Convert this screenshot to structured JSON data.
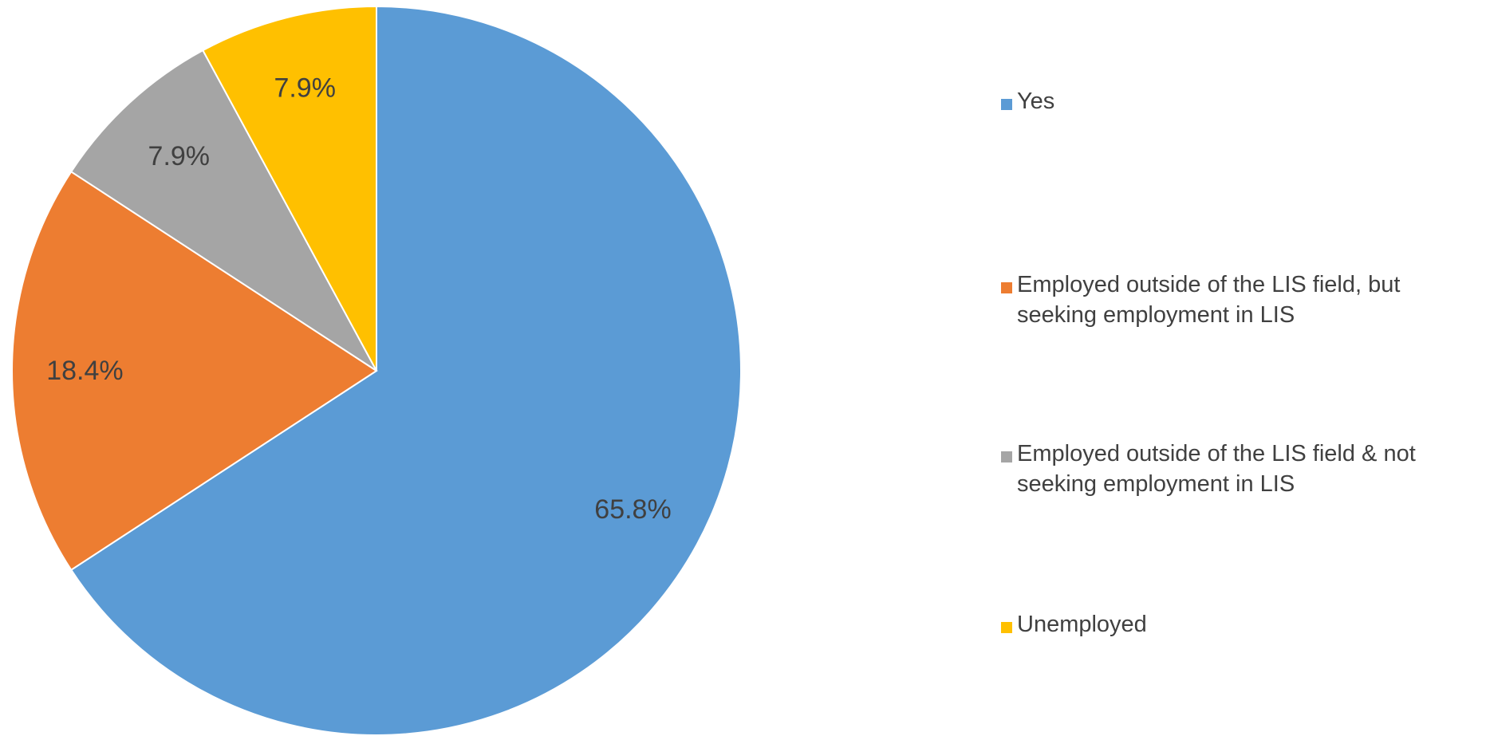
{
  "chart_data": {
    "type": "pie",
    "title": "",
    "start_angle_deg": 0,
    "direction": "clockwise",
    "slices": [
      {
        "name": "Yes",
        "value": 65.8,
        "label": "65.8%",
        "color": "#5B9BD5"
      },
      {
        "name": "Employed outside of the LIS field, but seeking employment in LIS",
        "value": 18.4,
        "label": "18.4%",
        "color": "#ED7D31"
      },
      {
        "name": "Employed outside of the LIS field & not seeking employment in LIS",
        "value": 7.9,
        "label": "7.9%",
        "color": "#A5A5A5"
      },
      {
        "name": "Unemployed",
        "value": 7.9,
        "label": "7.9%",
        "color": "#FFC000"
      }
    ],
    "legend": {
      "placement": "right",
      "entries": [
        "Yes",
        "Employed outside of the LIS field, but seeking employment in LIS",
        "Employed outside of the LIS field & not seeking employment in LIS",
        "Unemployed"
      ]
    }
  }
}
